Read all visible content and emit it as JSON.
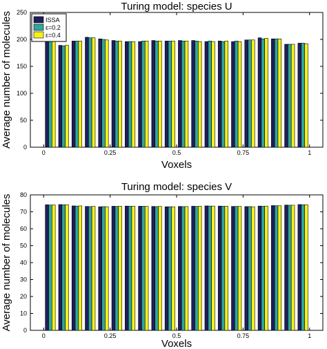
{
  "colors": {
    "ISSA": "#1f1f5b",
    "eps02": "#31a69a",
    "eps04": "#f5ee1c"
  },
  "chart_data": [
    {
      "type": "bar",
      "title": "Turing model: species U",
      "xlabel": "Voxels",
      "ylabel": "Average number of molecules",
      "ylim": [
        0,
        250
      ],
      "xlim": [
        -0.05,
        1.05
      ],
      "yticks": [
        0,
        50,
        100,
        150,
        200,
        250
      ],
      "xticks": [
        0,
        0.25,
        0.5,
        0.75,
        1
      ],
      "xtick_labels": [
        "0",
        "0.25",
        "0.5",
        "0.75",
        "1"
      ],
      "grid": false,
      "legend": "top-left",
      "x": [
        0.025,
        0.075,
        0.125,
        0.175,
        0.225,
        0.275,
        0.325,
        0.375,
        0.425,
        0.475,
        0.525,
        0.575,
        0.625,
        0.675,
        0.725,
        0.775,
        0.825,
        0.875,
        0.925,
        0.975
      ],
      "series": [
        {
          "name": "ISSA",
          "values": [
            198,
            189,
            197,
            204,
            201,
            198,
            196,
            196,
            198,
            197,
            198,
            198,
            196,
            197,
            196,
            199,
            203,
            201,
            191,
            193
          ]
        },
        {
          "name": "ε=0.2",
          "values": [
            199,
            188,
            197,
            203,
            200,
            197,
            196,
            197,
            197,
            197,
            197,
            197,
            197,
            196,
            197,
            199,
            201,
            201,
            191,
            193
          ]
        },
        {
          "name": "ε=0.4",
          "values": [
            197,
            189,
            197,
            203,
            199,
            197,
            196,
            197,
            197,
            197,
            197,
            196,
            196,
            197,
            196,
            199,
            202,
            201,
            191,
            192
          ]
        }
      ]
    },
    {
      "type": "bar",
      "title": "Turing model: species V",
      "xlabel": "Voxels",
      "ylabel": "Average number of molecules",
      "ylim": [
        0,
        80
      ],
      "xlim": [
        -0.05,
        1.05
      ],
      "yticks": [
        0,
        10,
        20,
        30,
        40,
        50,
        60,
        70,
        80
      ],
      "xticks": [
        0,
        0.25,
        0.5,
        0.75,
        1
      ],
      "xtick_labels": [
        "0",
        "0.25",
        "0.5",
        "0.75",
        "1"
      ],
      "grid": false,
      "x": [
        0.025,
        0.075,
        0.125,
        0.175,
        0.225,
        0.275,
        0.325,
        0.375,
        0.425,
        0.475,
        0.525,
        0.575,
        0.625,
        0.675,
        0.725,
        0.775,
        0.825,
        0.875,
        0.925,
        0.975
      ],
      "series": [
        {
          "name": "ISSA",
          "values": [
            74.2,
            74.3,
            73.5,
            73.2,
            73.0,
            73.3,
            73.4,
            73.3,
            73.2,
            73.0,
            73.2,
            73.3,
            73.5,
            73.4,
            73.2,
            73.1,
            73.4,
            73.7,
            74.0,
            74.3
          ]
        },
        {
          "name": "ε=0.2",
          "values": [
            74.0,
            74.2,
            73.4,
            73.1,
            73.1,
            73.2,
            73.3,
            73.3,
            73.1,
            73.0,
            73.1,
            73.2,
            73.4,
            73.3,
            73.2,
            73.1,
            73.3,
            73.6,
            73.9,
            74.2
          ]
        },
        {
          "name": "ε=0.4",
          "values": [
            74.1,
            74.2,
            73.5,
            73.2,
            73.0,
            73.3,
            73.3,
            73.2,
            73.2,
            73.0,
            73.1,
            73.3,
            73.4,
            73.3,
            73.2,
            73.0,
            73.4,
            73.6,
            73.9,
            74.2
          ]
        }
      ]
    }
  ]
}
